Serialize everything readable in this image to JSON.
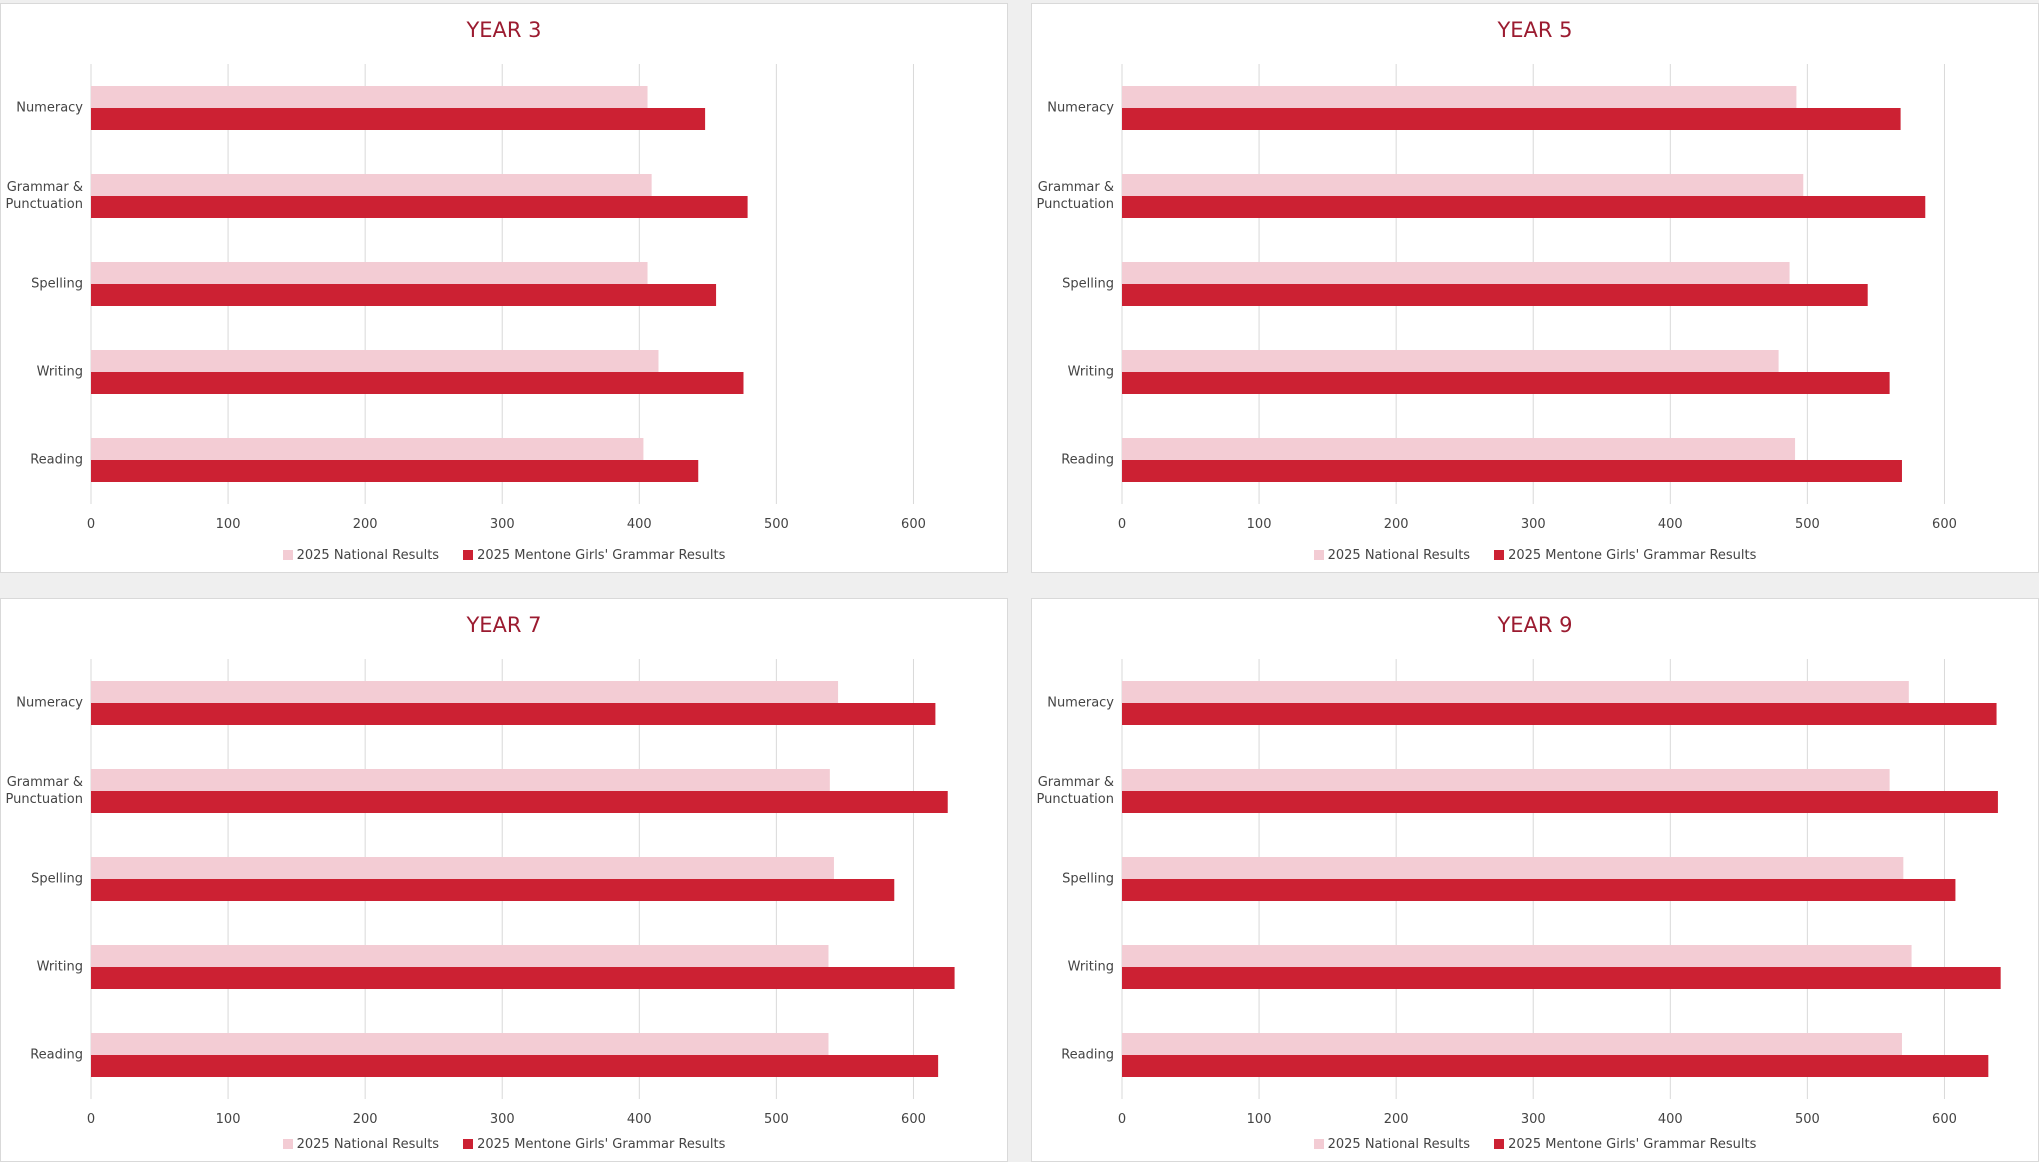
{
  "chart_data": [
    {
      "type": "hbar",
      "title": "YEAR 3",
      "categories": [
        "Numeracy",
        "Grammar & Punctuation",
        "Spelling",
        "Writing",
        "Reading"
      ],
      "series": [
        {
          "name": "2025 National Results",
          "color": "#f3ccd4",
          "values": [
            406,
            409,
            406,
            414,
            403
          ]
        },
        {
          "name": "2025 Mentone Girls' Grammar Results",
          "color": "#cc2133",
          "values": [
            448,
            479,
            456,
            476,
            443
          ]
        }
      ],
      "xlim": [
        0,
        650
      ],
      "xticks": [
        0,
        100,
        200,
        300,
        400,
        500,
        600
      ],
      "grid": true,
      "legend": "bottom"
    },
    {
      "type": "hbar",
      "title": "YEAR 5",
      "categories": [
        "Numeracy",
        "Grammar & Punctuation",
        "Spelling",
        "Writing",
        "Reading"
      ],
      "series": [
        {
          "name": "2025 National Results",
          "color": "#f3ccd4",
          "values": [
            492,
            497,
            487,
            479,
            491
          ]
        },
        {
          "name": "2025 Mentone Girls' Grammar Results",
          "color": "#cc2133",
          "values": [
            568,
            586,
            544,
            560,
            569
          ]
        }
      ],
      "xlim": [
        0,
        650
      ],
      "xticks": [
        0,
        100,
        200,
        300,
        400,
        500,
        600
      ],
      "grid": true,
      "legend": "bottom"
    },
    {
      "type": "hbar",
      "title": "YEAR 7",
      "categories": [
        "Numeracy",
        "Grammar & Punctuation",
        "Spelling",
        "Writing",
        "Reading"
      ],
      "series": [
        {
          "name": "2025 National Results",
          "color": "#f3ccd4",
          "values": [
            545,
            539,
            542,
            538,
            538
          ]
        },
        {
          "name": "2025 Mentone Girls' Grammar Results",
          "color": "#cc2133",
          "values": [
            616,
            625,
            586,
            630,
            618
          ]
        }
      ],
      "xlim": [
        0,
        650
      ],
      "xticks": [
        0,
        100,
        200,
        300,
        400,
        500,
        600
      ],
      "grid": true,
      "legend": "bottom"
    },
    {
      "type": "hbar",
      "title": "YEAR 9",
      "categories": [
        "Numeracy",
        "Grammar & Punctuation",
        "Spelling",
        "Writing",
        "Reading"
      ],
      "series": [
        {
          "name": "2025 National Results",
          "color": "#f3ccd4",
          "values": [
            574,
            560,
            570,
            576,
            569
          ]
        },
        {
          "name": "2025 Mentone Girls' Grammar Results",
          "color": "#cc2133",
          "values": [
            638,
            639,
            608,
            641,
            632
          ]
        }
      ],
      "xlim": [
        0,
        650
      ],
      "xticks": [
        0,
        100,
        200,
        300,
        400,
        500,
        600
      ],
      "grid": true,
      "legend": "bottom"
    }
  ]
}
